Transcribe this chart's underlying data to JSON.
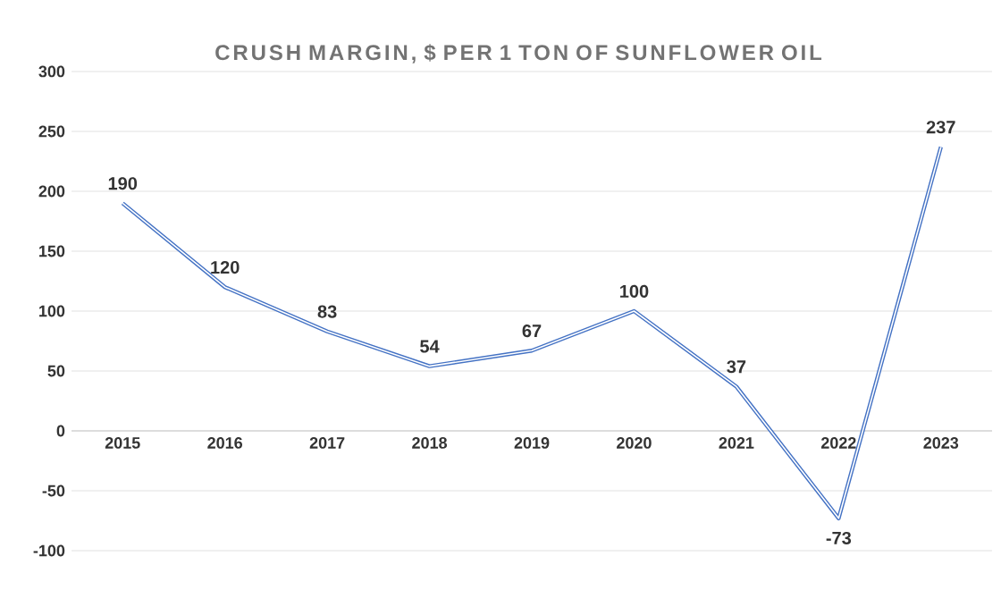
{
  "chart_data": {
    "type": "line",
    "title": "CRUSH MARGIN, $ PER 1 TON OF SUNFLOWER OIL",
    "categories": [
      "2015",
      "2016",
      "2017",
      "2018",
      "2019",
      "2020",
      "2021",
      "2022",
      "2023"
    ],
    "values": [
      190,
      120,
      83,
      54,
      67,
      100,
      37,
      -73,
      237
    ],
    "color": "#4472c4",
    "ylim": [
      -100,
      300
    ],
    "yticks": [
      -100,
      -50,
      0,
      50,
      100,
      150,
      200,
      250,
      300
    ],
    "grid": "y",
    "data_labels": true,
    "marker": "none",
    "line_style": "solid"
  }
}
